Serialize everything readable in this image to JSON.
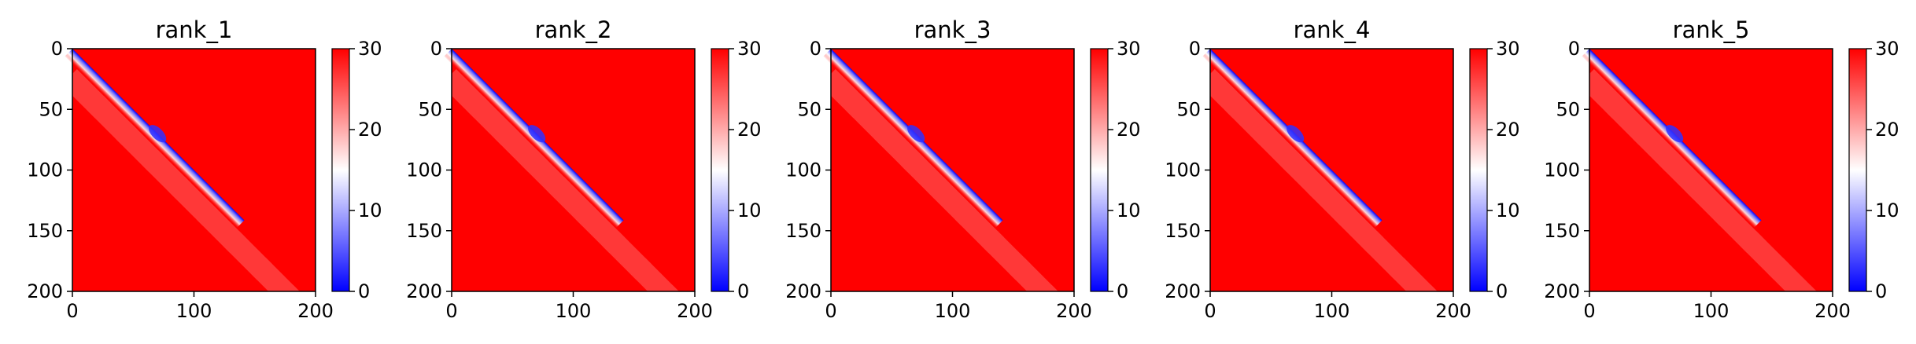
{
  "chart_data": [
    {
      "type": "heatmap",
      "title": "rank_1",
      "colormap": "bwr",
      "x_ticks": [
        0,
        100,
        200
      ],
      "y_ticks": [
        0,
        50,
        100,
        150,
        200
      ],
      "xlim": [
        0,
        200
      ],
      "ylim": [
        200,
        0
      ],
      "colorbar": {
        "ticks": [
          0,
          10,
          20,
          30
        ],
        "range": [
          0,
          30
        ]
      },
      "n": 200,
      "diagonal_value": 0,
      "offdiag_value": 30
    },
    {
      "type": "heatmap",
      "title": "rank_2",
      "colormap": "bwr",
      "x_ticks": [
        0,
        100,
        200
      ],
      "y_ticks": [
        0,
        50,
        100,
        150,
        200
      ],
      "xlim": [
        0,
        200
      ],
      "ylim": [
        200,
        0
      ],
      "colorbar": {
        "ticks": [
          0,
          10,
          20,
          30
        ],
        "range": [
          0,
          30
        ]
      },
      "n": 200,
      "diagonal_value": 0,
      "offdiag_value": 30
    },
    {
      "type": "heatmap",
      "title": "rank_3",
      "colormap": "bwr",
      "x_ticks": [
        0,
        100,
        200
      ],
      "y_ticks": [
        0,
        50,
        100,
        150,
        200
      ],
      "xlim": [
        0,
        200
      ],
      "ylim": [
        200,
        0
      ],
      "colorbar": {
        "ticks": [
          0,
          10,
          20,
          30
        ],
        "range": [
          0,
          30
        ]
      },
      "n": 200,
      "diagonal_value": 0,
      "offdiag_value": 30
    },
    {
      "type": "heatmap",
      "title": "rank_4",
      "colormap": "bwr",
      "x_ticks": [
        0,
        100,
        200
      ],
      "y_ticks": [
        0,
        50,
        100,
        150,
        200
      ],
      "xlim": [
        0,
        200
      ],
      "ylim": [
        200,
        0
      ],
      "colorbar": {
        "ticks": [
          0,
          10,
          20,
          30
        ],
        "range": [
          0,
          30
        ]
      },
      "n": 200,
      "diagonal_value": 0,
      "offdiag_value": 30
    },
    {
      "type": "heatmap",
      "title": "rank_5",
      "colormap": "bwr",
      "x_ticks": [
        0,
        100,
        200
      ],
      "y_ticks": [
        0,
        50,
        100,
        150,
        200
      ],
      "xlim": [
        0,
        200
      ],
      "ylim": [
        200,
        0
      ],
      "colorbar": {
        "ticks": [
          0,
          10,
          20,
          30
        ],
        "range": [
          0,
          30
        ]
      },
      "n": 200,
      "diagonal_value": 0,
      "offdiag_value": 30
    }
  ]
}
